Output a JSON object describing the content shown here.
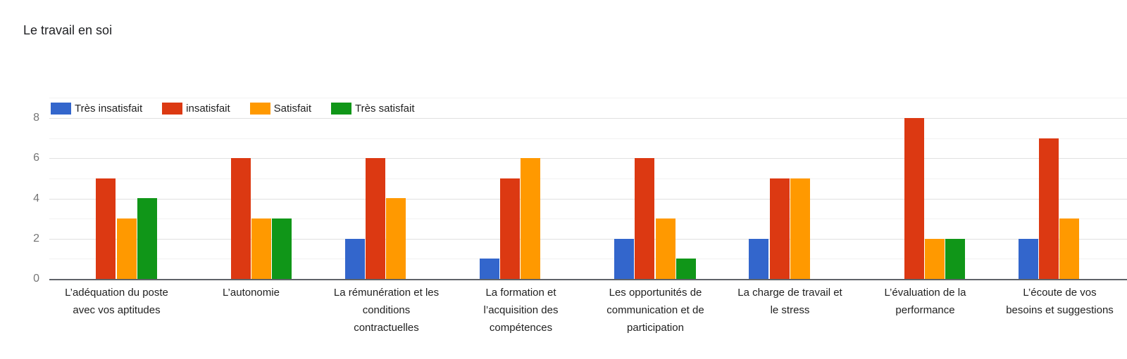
{
  "title": "Le travail en soi",
  "chart_data": {
    "type": "bar",
    "title": "Le travail en soi",
    "categories": [
      "L’adéquation du poste avec vos aptitudes",
      "L’autonomie",
      "La rémunération et les conditions contractuelles",
      "La formation et l’acquisition des compétences",
      "Les opportunités de communication et de participation",
      "La charge de travail et le stress",
      "L’évaluation de la performance",
      "L’écoute de vos besoins et suggestions"
    ],
    "category_lines": [
      [
        "L’adéquation du poste",
        "avec vos aptitudes"
      ],
      [
        "L’autonomie"
      ],
      [
        "La rémunération et les",
        "conditions",
        "contractuelles"
      ],
      [
        "La formation et",
        "l’acquisition des",
        "compétences"
      ],
      [
        "Les opportunités de",
        "communication et de",
        "participation"
      ],
      [
        "La charge de travail et",
        "le stress"
      ],
      [
        "L’évaluation de la",
        "performance"
      ],
      [
        "L’écoute de vos",
        "besoins et suggestions"
      ]
    ],
    "series": [
      {
        "name": "Très insatisfait",
        "color": "#3366CC",
        "values": [
          0,
          0,
          2,
          1,
          2,
          2,
          0,
          2
        ]
      },
      {
        "name": "insatisfait",
        "color": "#DC3912",
        "values": [
          5,
          6,
          6,
          5,
          6,
          5,
          8,
          7
        ]
      },
      {
        "name": "Satisfait",
        "color": "#FF9900",
        "values": [
          3,
          3,
          4,
          6,
          3,
          5,
          2,
          3
        ]
      },
      {
        "name": "Très satisfait",
        "color": "#109618",
        "values": [
          4,
          3,
          0,
          0,
          1,
          0,
          2,
          0
        ]
      }
    ],
    "y_axis": {
      "ticks": [
        0,
        2,
        4,
        6,
        8
      ],
      "max": 8,
      "minor_gridlines_at": [
        1,
        3,
        5,
        7,
        9
      ]
    },
    "xlabel": "",
    "ylabel": "",
    "legend_position": "top",
    "grid": true
  }
}
